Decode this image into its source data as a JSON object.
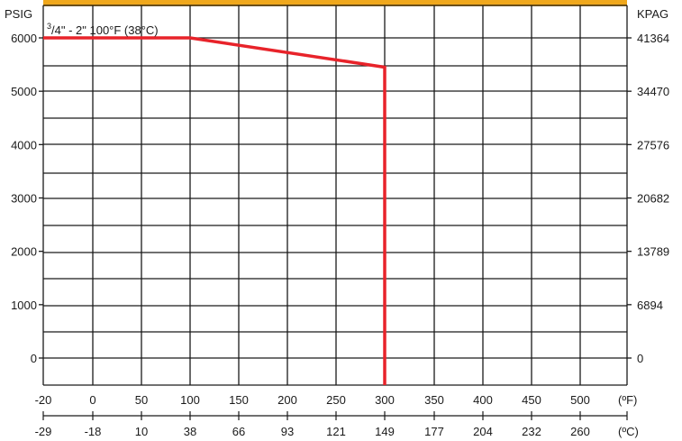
{
  "chart_data": {
    "type": "line",
    "title": "",
    "annotation": {
      "sup": "3",
      "fraction_rest": "/4\" - 2\" 100°F (38°C)"
    },
    "left_axis_label": "PSIG",
    "right_axis_label": "KPAG",
    "top_unit": "(ºF)",
    "bottom_unit": "(ºC)",
    "y_ticks_psig": [
      "6000",
      "5000",
      "4000",
      "3000",
      "2000",
      "1000",
      "0"
    ],
    "y_ticks_kpag": [
      "41364",
      "34470",
      "27576",
      "20682",
      "13789",
      "6894",
      "0"
    ],
    "y_tick_values": [
      6000,
      5000,
      4000,
      3000,
      2000,
      1000,
      0
    ],
    "x_ticks_f": [
      "-20",
      "0",
      "50",
      "100",
      "150",
      "200",
      "250",
      "300",
      "350",
      "400",
      "450",
      "500"
    ],
    "x_tick_values_f": [
      -20,
      0,
      50,
      100,
      150,
      200,
      250,
      300,
      350,
      400,
      450,
      500
    ],
    "x_ticks_c": [
      "-29",
      "-18",
      "10",
      "38",
      "66",
      "93",
      "121",
      "149",
      "177",
      "204",
      "232",
      "260"
    ],
    "ylim": [
      -500,
      6500
    ],
    "grid": true,
    "series": [
      {
        "color": "#e8232a",
        "x": [
          -20,
          100,
          300,
          300
        ],
        "y": [
          6000,
          6000,
          5450,
          -500
        ]
      }
    ],
    "top_bar_color": "#f0a81c",
    "grid_color": "#1a1a1a"
  }
}
